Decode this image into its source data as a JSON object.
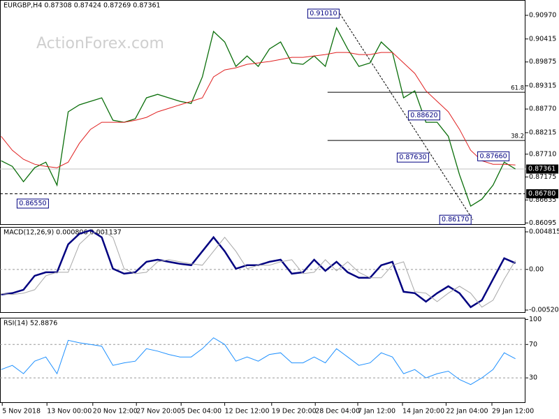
{
  "watermark": "ActionForex.com",
  "chart_data": [
    {
      "type": "line",
      "title": "EURGBP,H4  0.87308 0.87424 0.87269 0.87361",
      "x": [
        0,
        1,
        2,
        3,
        4,
        5,
        6,
        7,
        8,
        9,
        10,
        11,
        12,
        13,
        14,
        15,
        16,
        17,
        18,
        19,
        20,
        21,
        22,
        23,
        24,
        25,
        26,
        27,
        28,
        29,
        30,
        31,
        32,
        33,
        34,
        35,
        36,
        37,
        38,
        39,
        40,
        41,
        42,
        43,
        44,
        45,
        46
      ],
      "xlim": [
        -0.1,
        46.9
      ],
      "ylim": [
        0.8605,
        0.9133
      ],
      "yticks": [
        {
          "value": 0.9097,
          "label": "0.90970"
        },
        0.90415,
        0.89875,
        0.89315,
        {
          "value": 0.8877,
          "label": "0.88770"
        },
        0.88215,
        {
          "value": 0.8771,
          "label": "0.87710"
        },
        0.87175,
        0.86635,
        0.86095
      ],
      "series": [
        {
          "color": "#0a6e0a",
          "values": [
            0.87556,
            0.87424,
            0.87063,
            0.87392,
            0.87523,
            0.86981,
            0.88704,
            0.88868,
            0.88951,
            0.89033,
            0.88507,
            0.88458,
            0.8854,
            0.89033,
            0.89115,
            0.89033,
            0.88951,
            0.88901,
            0.89525,
            0.90592,
            0.90345,
            0.89771,
            0.90017,
            0.89771,
            0.90181,
            0.90345,
            0.89853,
            0.8982,
            0.90017,
            0.89771,
            0.90674,
            0.90181,
            0.89771,
            0.89853,
            0.90345,
            0.90099,
            0.89033,
            0.89197,
            0.88458,
            0.88458,
            0.8813,
            0.87227,
            0.86489,
            0.86653,
            0.86981,
            0.87523,
            0.87361
          ]
        },
        {
          "color": "#e02020",
          "values": [
            0.8813,
            0.87802,
            0.87589,
            0.87474,
            0.87424,
            0.87392,
            0.87523,
            0.87966,
            0.88294,
            0.88458,
            0.88458,
            0.88458,
            0.88507,
            0.88573,
            0.88704,
            0.88786,
            0.88868,
            0.88951,
            0.89033,
            0.89525,
            0.89689,
            0.89738,
            0.8982,
            0.89853,
            0.89886,
            0.89935,
            0.89984,
            0.89984,
            0.90017,
            0.9005,
            0.90099,
            0.90099,
            0.9005,
            0.9005,
            0.90099,
            0.90099,
            0.89853,
            0.89607,
            0.89197,
            0.88951,
            0.88704,
            0.88294,
            0.87802,
            0.87556,
            0.87474,
            0.87474,
            0.87457
          ]
        }
      ],
      "current": {
        "value": 0.87361,
        "label": "0.87361"
      },
      "hline": {
        "value": 0.8678,
        "label": "0.86780"
      },
      "fib": [
        {
          "level": 61.8,
          "price": 0.89164
        },
        {
          "level": 38.2,
          "price": 0.88032
        }
      ],
      "fib_start": 29.2,
      "trendline": {
        "x": [
          30.3,
          42.2
        ],
        "y": [
          0.9101,
          0.8617
        ]
      },
      "annotations": [
        {
          "x": 30.3,
          "value": 0.9101,
          "label": "0.91010"
        },
        {
          "x": 4.3,
          "value": 0.8655,
          "label": "0.86550"
        },
        {
          "x": 38.3,
          "value": 0.8763,
          "label": "0.87630"
        },
        {
          "x": 39.3,
          "value": 0.8862,
          "label": "0.88620"
        },
        {
          "x": 45.5,
          "value": 0.8766,
          "label": "0.87660"
        },
        {
          "x": 42.1,
          "value": 0.8617,
          "label": "0.86170"
        }
      ]
    },
    {
      "type": "line",
      "title": "MACD(12,26,9) 0.000806 0.001137",
      "xlim": [
        -0.1,
        46.9
      ],
      "ylim": [
        -0.00556,
        0.00544
      ],
      "yticks": [
        0.004815,
        {
          "value": 0,
          "label": "0.00"
        },
        -0.005204
      ],
      "levels": [
        0
      ],
      "series": [
        {
          "color": "#000080",
          "values": [
            -0.00322,
            -0.00304,
            -0.0026,
            -0.00081,
            -0.00036,
            -0.00036,
            0.00322,
            0.00456,
            0.00501,
            0.00412,
            9e-05,
            -0.00054,
            -0.00036,
            0.00098,
            0.00125,
            0.00098,
            0.00072,
            0.00054,
            0.00233,
            0.00412,
            0.00233,
            9e-05,
            0.00054,
            0.00054,
            0.00098,
            0.00125,
            -0.00054,
            -0.00036,
            0.00125,
            -0.00018,
            0.00098,
            -0.00036,
            -0.00107,
            -0.00107,
            0.00054,
            0.00098,
            -0.00286,
            -0.00304,
            -0.00412,
            -0.00304,
            -0.00215,
            -0.00304,
            -0.00483,
            -0.00394,
            -0.00125,
            0.00143,
            0.00081
          ]
        },
        {
          "color": "#a8a8a8",
          "values": [
            -0.0031,
            -0.00322,
            -0.00304,
            -0.0026,
            -0.00081,
            -0.00036,
            -0.00036,
            0.00322,
            0.00456,
            0.00501,
            0.00412,
            9e-05,
            -0.00054,
            -0.00036,
            0.00098,
            0.00125,
            0.00098,
            0.00072,
            0.00054,
            0.00233,
            0.00412,
            0.00233,
            9e-05,
            0.00054,
            0.00054,
            0.00098,
            0.00125,
            -0.00054,
            -0.00036,
            0.00125,
            -0.00018,
            0.00098,
            -0.00036,
            -0.00107,
            -0.00107,
            0.00054,
            0.00098,
            -0.00286,
            -0.00304,
            -0.00412,
            -0.00304,
            -0.00215,
            -0.00304,
            -0.00483,
            -0.00394,
            -0.00125,
            0.00114
          ]
        }
      ]
    },
    {
      "type": "line",
      "title": "RSI(14) 52.8876",
      "xlim": [
        -0.1,
        46.9
      ],
      "ylim": [
        0,
        102
      ],
      "yticks": [
        100,
        70,
        30
      ],
      "levels": [
        70,
        30
      ],
      "xticks": [
        {
          "value": 0.1,
          "label": "5 Nov 2018"
        },
        {
          "value": 4.1,
          "label": "13 Nov 00:00"
        },
        {
          "value": 8.2,
          "label": "20 Nov 12:00"
        },
        {
          "value": 12.1,
          "label": "27 Nov 20:00"
        },
        {
          "value": 16.1,
          "label": "5 Dec 04:00"
        },
        {
          "value": 20,
          "label": "12 Dec 12:00"
        },
        {
          "value": 24.2,
          "label": "19 Dec 20:00"
        },
        {
          "value": 28.1,
          "label": "28 Dec 04:00"
        },
        {
          "value": 31.9,
          "label": "7 Jan 12:00"
        },
        {
          "value": 35.9,
          "label": "14 Jan 20:00"
        },
        {
          "value": 39.8,
          "label": "22 Jan 04:00"
        },
        {
          "value": 43.9,
          "label": "29 Jan 12:00"
        }
      ],
      "series": [
        {
          "color": "#1e90ff",
          "values": [
            40,
            45,
            35,
            50,
            55,
            35,
            75,
            72,
            70,
            68,
            45,
            48,
            50,
            65,
            62,
            58,
            55,
            55,
            65,
            78,
            70,
            50,
            55,
            50,
            58,
            60,
            48,
            48,
            55,
            48,
            65,
            55,
            45,
            48,
            60,
            55,
            35,
            40,
            30,
            35,
            38,
            28,
            22,
            30,
            40,
            60,
            52.8876
          ]
        }
      ]
    }
  ]
}
